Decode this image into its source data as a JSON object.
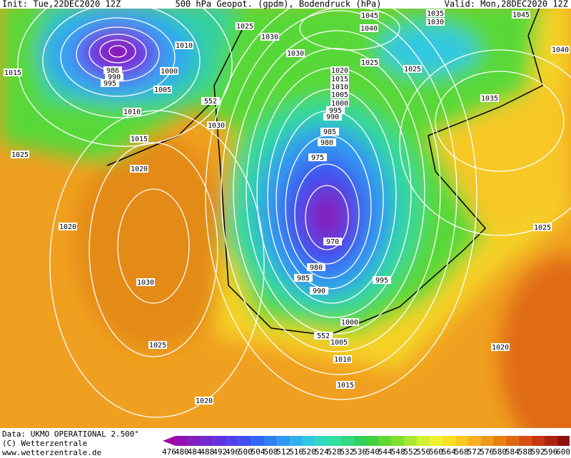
{
  "header": {
    "init": "Init: Tue,22DEC2020 12Z",
    "title": "500 hPa Geopot. (gpdm), Bodendruck (hPa)",
    "valid": "Valid: Mon,28DEC2020 12Z"
  },
  "isobar_labels": [
    "1015",
    "1000",
    "986",
    "990",
    "995",
    "1005",
    "1010",
    "1015",
    "1025",
    "1020",
    "552",
    "1030",
    "1025",
    "1030",
    "1010",
    "1030",
    "1045",
    "1040",
    "1035",
    "1030",
    "1045",
    "1025",
    "1025",
    "1020",
    "1015",
    "1010",
    "1005",
    "1000",
    "995",
    "990",
    "985",
    "980",
    "975",
    "970",
    "980",
    "985",
    "990",
    "995",
    "1000",
    "1005",
    "1010",
    "1015",
    "552",
    "1020",
    "1030",
    "1025",
    "1020",
    "1035",
    "1025",
    "1020",
    "1040"
  ],
  "footer": {
    "source": "Data: UKMO OPERATIONAL 2.500°",
    "copyright": "(C) Wetterzentrale",
    "url": "www.wetterzentrale.de"
  },
  "scale": {
    "labels": [
      "476",
      "480",
      "484",
      "488",
      "492",
      "496",
      "500",
      "504",
      "508",
      "512",
      "516",
      "520",
      "524",
      "528",
      "532",
      "536",
      "540",
      "544",
      "548",
      "552",
      "556",
      "560",
      "564",
      "568",
      "572",
      "576",
      "580",
      "584",
      "588",
      "592",
      "596",
      "600"
    ],
    "colors": [
      "#a000a0",
      "#9010b0",
      "#8020c0",
      "#7028d0",
      "#6030e0",
      "#5040f0",
      "#4050f0",
      "#3068f0",
      "#3080f0",
      "#3098f0",
      "#30b0f0",
      "#30c8e0",
      "#30d8c0",
      "#30e0a0",
      "#30d880",
      "#30d060",
      "#40d040",
      "#60d830",
      "#80e030",
      "#a8e830",
      "#d0f030",
      "#f0f030",
      "#f8e020",
      "#f8c820",
      "#f8b020",
      "#f09818",
      "#e88010",
      "#e06810",
      "#d85010",
      "#c83810",
      "#b02010",
      "#901010"
    ]
  }
}
